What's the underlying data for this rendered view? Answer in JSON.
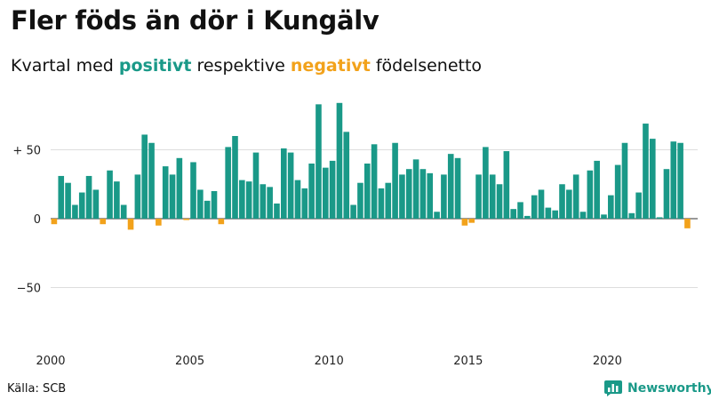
{
  "header": {
    "title": "Fler föds än dör i Kungälv",
    "subtitle_prefix": "Kvartal med ",
    "subtitle_positive": "positivt",
    "subtitle_middle": " respektive ",
    "subtitle_negative": "negativt",
    "subtitle_suffix": " födelsenetto"
  },
  "footer": {
    "source": "Källa: SCB",
    "brand": "Newsworthy",
    "brand_icon": "bar-chart-logo-icon"
  },
  "colors": {
    "positive": "#1a9988",
    "negative": "#f2a21b",
    "grid": "#dddddd",
    "zero": "#333333"
  },
  "chart_data": {
    "type": "bar",
    "title": "Fler föds än dör i Kungälv",
    "subtitle": "Kvartal med positivt respektive negativt födelsenetto",
    "xlabel": "",
    "ylabel": "",
    "ylim": [
      -90,
      90
    ],
    "grid": true,
    "yticks": [
      {
        "value": 50,
        "label": "+ 50"
      },
      {
        "value": 0,
        "label": "0"
      },
      {
        "value": -50,
        "label": "−50"
      }
    ],
    "xticks": [
      "2000",
      "2005",
      "2010",
      "2015",
      "2020"
    ],
    "categories": [
      "2000 Q1",
      "2000 Q2",
      "2000 Q3",
      "2000 Q4",
      "2001 Q1",
      "2001 Q2",
      "2001 Q3",
      "2001 Q4",
      "2002 Q1",
      "2002 Q2",
      "2002 Q3",
      "2002 Q4",
      "2003 Q1",
      "2003 Q2",
      "2003 Q3",
      "2003 Q4",
      "2004 Q1",
      "2004 Q2",
      "2004 Q3",
      "2004 Q4",
      "2005 Q1",
      "2005 Q2",
      "2005 Q3",
      "2005 Q4",
      "2006 Q1",
      "2006 Q2",
      "2006 Q3",
      "2006 Q4",
      "2007 Q1",
      "2007 Q2",
      "2007 Q3",
      "2007 Q4",
      "2008 Q1",
      "2008 Q2",
      "2008 Q3",
      "2008 Q4",
      "2009 Q1",
      "2009 Q2",
      "2009 Q3",
      "2009 Q4",
      "2010 Q1",
      "2010 Q2",
      "2010 Q3",
      "2010 Q4",
      "2011 Q1",
      "2011 Q2",
      "2011 Q3",
      "2011 Q4",
      "2012 Q1",
      "2012 Q2",
      "2012 Q3",
      "2012 Q4",
      "2013 Q1",
      "2013 Q2",
      "2013 Q3",
      "2013 Q4",
      "2014 Q1",
      "2014 Q2",
      "2014 Q3",
      "2014 Q4",
      "2015 Q1",
      "2015 Q2",
      "2015 Q3",
      "2015 Q4",
      "2016 Q1",
      "2016 Q2",
      "2016 Q3",
      "2016 Q4",
      "2017 Q1",
      "2017 Q2",
      "2017 Q3",
      "2017 Q4",
      "2018 Q1",
      "2018 Q2",
      "2018 Q3",
      "2018 Q4",
      "2019 Q1",
      "2019 Q2",
      "2019 Q3",
      "2019 Q4",
      "2020 Q1",
      "2020 Q2",
      "2020 Q3",
      "2020 Q4",
      "2021 Q1",
      "2021 Q2",
      "2021 Q3",
      "2021 Q4",
      "2022 Q1",
      "2022 Q2",
      "2022 Q3",
      "2022 Q4"
    ],
    "values": [
      -4,
      31,
      26,
      10,
      19,
      31,
      21,
      -4,
      35,
      27,
      10,
      -8,
      32,
      61,
      55,
      -5,
      38,
      32,
      44,
      -1,
      41,
      21,
      13,
      20,
      -4,
      52,
      60,
      28,
      27,
      48,
      25,
      23,
      11,
      51,
      48,
      28,
      22,
      40,
      83,
      37,
      42,
      84,
      63,
      10,
      26,
      40,
      54,
      22,
      26,
      55,
      32,
      36,
      43,
      36,
      33,
      5,
      32,
      47,
      44,
      -5,
      -3,
      32,
      52,
      32,
      25,
      49,
      7,
      12,
      2,
      17,
      21,
      8,
      6,
      25,
      21,
      32,
      5,
      35,
      42,
      3,
      17,
      39,
      55,
      4,
      19,
      69,
      58,
      1,
      36,
      56,
      55,
      -7
    ]
  }
}
